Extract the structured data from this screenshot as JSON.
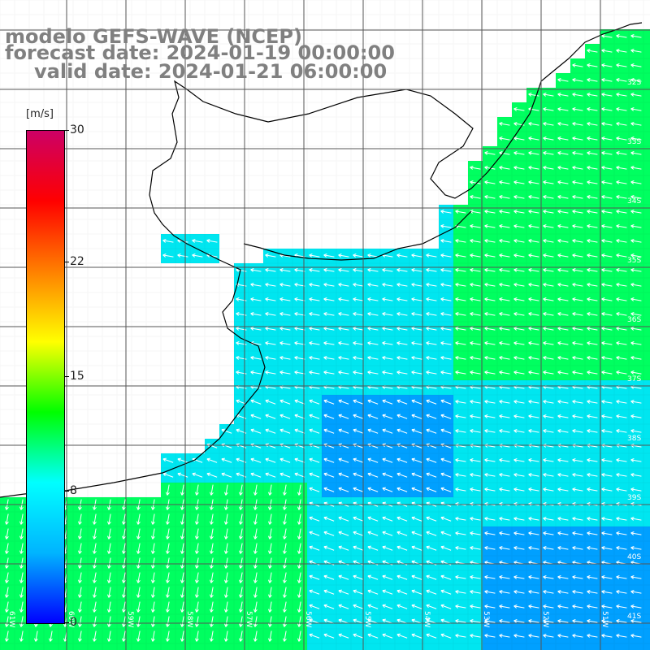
{
  "title": {
    "line1": "modelo GEFS-WAVE (NCEP)",
    "line2": "forecast date: 2024-01-19 00:00:00",
    "line3": "valid date: 2024-01-21 06:00:00"
  },
  "colorbar": {
    "unit": "[m/s]",
    "ticks": [
      {
        "label": "30",
        "value": 30
      },
      {
        "label": "22",
        "value": 22
      },
      {
        "label": "15",
        "value": 15
      },
      {
        "label": "8",
        "value": 8
      },
      {
        "label": "0",
        "value": 0
      }
    ],
    "gradient": [
      "#0000ff",
      "#00b4ff",
      "#00ffff",
      "#00ff00",
      "#ffff00",
      "#ff8000",
      "#ff0000",
      "#cc0066"
    ]
  },
  "colors": {
    "land": "#ffffff",
    "grid": "#555555",
    "coast": "#000000",
    "ocean_cyan": "#00e6f0",
    "ocean_green": "#00ff60",
    "ocean_blue": "#00a0ff",
    "arrows": "#ffffff"
  },
  "lat_labels": [
    "32S",
    "33S",
    "34S",
    "35S",
    "36S",
    "37S",
    "38S",
    "39S",
    "40S",
    "41S"
  ],
  "lon_labels": [
    "61W",
    "60W",
    "59W",
    "58W",
    "57W",
    "56W",
    "55W",
    "54W",
    "53W",
    "52W",
    "51W"
  ]
}
